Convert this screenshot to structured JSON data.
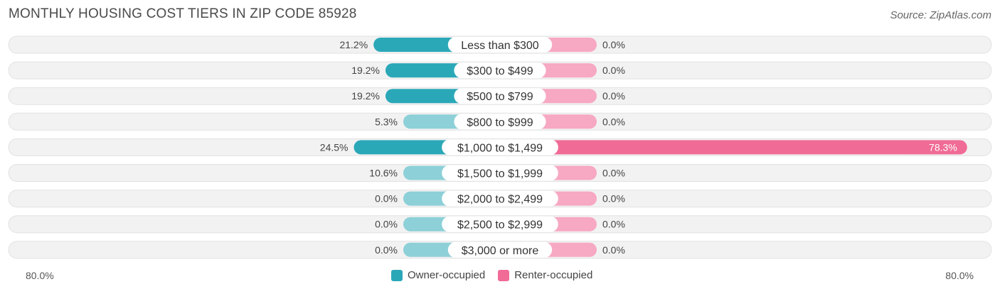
{
  "title": "MONTHLY HOUSING COST TIERS IN ZIP CODE 85928",
  "source": "Source: ZipAtlas.com",
  "colors": {
    "owner": "#2ba8b8",
    "owner_light": "#8dd0d8",
    "renter": "#f06b96",
    "renter_light": "#f7a8c2",
    "track": "#f1f1f1"
  },
  "legend": {
    "owner_label": "Owner-occupied",
    "renter_label": "Renter-occupied"
  },
  "axis": {
    "left_label": "80.0%",
    "right_label": "80.0%"
  },
  "chart_data": {
    "type": "bar",
    "orientation": "diverging-horizontal",
    "xlim": [
      -80,
      80
    ],
    "categories": [
      "Less than $300",
      "$300 to $499",
      "$500 to $799",
      "$800 to $999",
      "$1,000 to $1,499",
      "$1,500 to $1,999",
      "$2,000 to $2,499",
      "$2,500 to $2,999",
      "$3,000 or more"
    ],
    "series": [
      {
        "name": "Owner-occupied",
        "values": [
          21.2,
          19.2,
          19.2,
          5.3,
          24.5,
          10.6,
          0.0,
          0.0,
          0.0
        ],
        "labels": [
          "21.2%",
          "19.2%",
          "19.2%",
          "5.3%",
          "24.5%",
          "10.6%",
          "0.0%",
          "0.0%",
          "0.0%"
        ]
      },
      {
        "name": "Renter-occupied",
        "values": [
          0.0,
          0.0,
          0.0,
          0.0,
          78.3,
          0.0,
          0.0,
          0.0,
          0.0
        ],
        "labels": [
          "0.0%",
          "0.0%",
          "0.0%",
          "0.0%",
          "78.3%",
          "0.0%",
          "0.0%",
          "0.0%",
          "0.0%"
        ]
      }
    ],
    "legend_position": "bottom-center"
  }
}
